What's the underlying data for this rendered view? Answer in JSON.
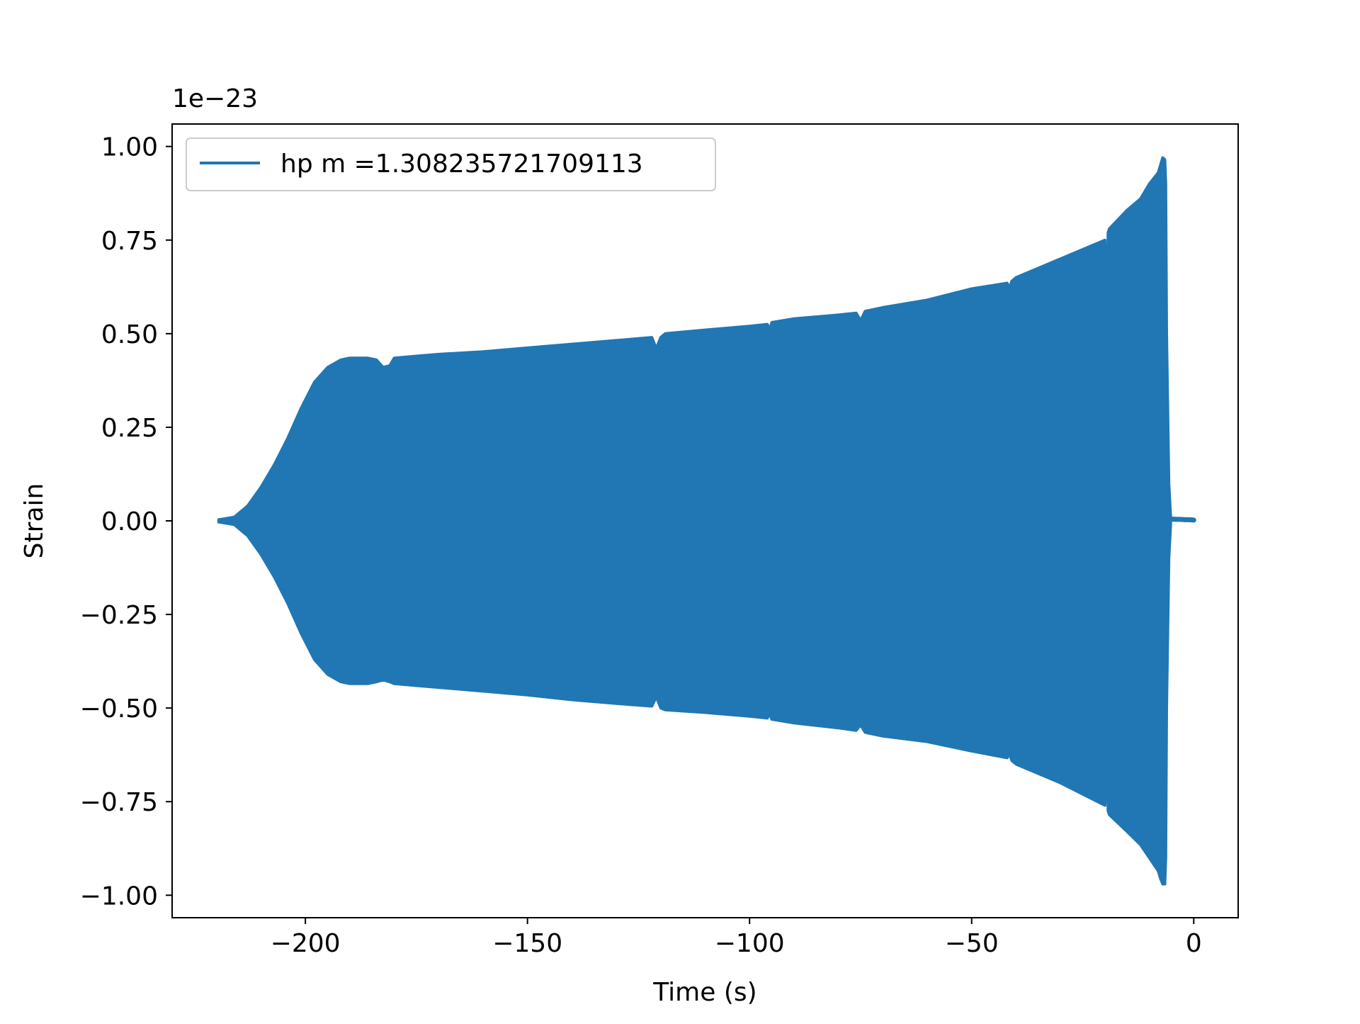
{
  "chart_data": {
    "type": "line",
    "title": "",
    "xlabel": "Time (s)",
    "ylabel": "Strain",
    "y_offset_label": "1e−23",
    "y_scale_factor": 1e-23,
    "xlim": [
      -230,
      10
    ],
    "ylim": [
      -1.06,
      1.06
    ],
    "x_ticks": [
      -200,
      -150,
      -100,
      -50,
      0
    ],
    "x_tick_labels": [
      "−200",
      "−150",
      "−100",
      "−50",
      "0"
    ],
    "y_ticks": [
      1.0,
      0.75,
      0.5,
      0.25,
      0.0,
      -0.25,
      -0.5,
      -0.75,
      -1.0
    ],
    "y_tick_labels": [
      "1.00",
      "0.75",
      "0.50",
      "0.25",
      "0.00",
      "−0.25",
      "−0.50",
      "−0.75",
      "−1.00"
    ],
    "grid": false,
    "legend_position": "upper-left",
    "series": [
      {
        "name": "hp m =1.308235721709113",
        "color": "#2077b4",
        "style": "dense-oscillation-envelope",
        "envelope_upper": {
          "x": [
            -219.5,
            -216,
            -213,
            -210,
            -207,
            -204,
            -201,
            -198,
            -195,
            -192,
            -190,
            -186,
            -184,
            -182.5,
            -181,
            -180,
            -175,
            -170,
            -160,
            -150,
            -140,
            -130,
            -122,
            -121,
            -120,
            -119,
            -110,
            -100,
            -96,
            -95.5,
            -95,
            -90,
            -80,
            -76,
            -75,
            -74,
            -70,
            -60,
            -50,
            -42,
            -41.5,
            -41,
            -40,
            -30,
            -20,
            -19.5,
            -19.3,
            -19,
            -15,
            -12,
            -10,
            -8,
            -7.5,
            -7,
            -6.5,
            -6.3,
            -6.2,
            -6.1,
            -5.6,
            -5.2
          ],
          "y": [
            0.003,
            0.01,
            0.04,
            0.09,
            0.15,
            0.22,
            0.3,
            0.37,
            0.41,
            0.43,
            0.435,
            0.435,
            0.43,
            0.41,
            0.415,
            0.435,
            0.44,
            0.445,
            0.452,
            0.462,
            0.472,
            0.482,
            0.49,
            0.46,
            0.49,
            0.5,
            0.51,
            0.52,
            0.525,
            0.51,
            0.53,
            0.54,
            0.55,
            0.555,
            0.535,
            0.56,
            0.57,
            0.59,
            0.62,
            0.635,
            0.62,
            0.64,
            0.65,
            0.7,
            0.75,
            0.55,
            0.77,
            0.78,
            0.83,
            0.86,
            0.9,
            0.93,
            0.95,
            0.97,
            0.965,
            0.9,
            0.7,
            0.5,
            0.1,
            0.01
          ]
        },
        "envelope_lower": {
          "x": [
            -219.5,
            -216,
            -213,
            -210,
            -207,
            -204,
            -201,
            -198,
            -195,
            -192,
            -190,
            -186,
            -184,
            -182.5,
            -181,
            -180,
            -175,
            -170,
            -160,
            -150,
            -140,
            -130,
            -122,
            -121,
            -120,
            -119,
            -110,
            -100,
            -96,
            -95.5,
            -95,
            -90,
            -80,
            -76,
            -75,
            -74,
            -70,
            -60,
            -50,
            -42,
            -41.5,
            -41,
            -40,
            -30,
            -20,
            -19.5,
            -19.3,
            -19,
            -15,
            -12,
            -10,
            -8,
            -7.5,
            -7,
            -6.5,
            -6.3,
            -6.2,
            -6.1,
            -5.6,
            -5.2
          ],
          "y": [
            -0.003,
            -0.01,
            -0.04,
            -0.09,
            -0.15,
            -0.22,
            -0.3,
            -0.37,
            -0.41,
            -0.43,
            -0.435,
            -0.435,
            -0.43,
            -0.425,
            -0.43,
            -0.435,
            -0.44,
            -0.445,
            -0.455,
            -0.465,
            -0.478,
            -0.488,
            -0.495,
            -0.47,
            -0.5,
            -0.505,
            -0.512,
            -0.522,
            -0.527,
            -0.515,
            -0.53,
            -0.54,
            -0.553,
            -0.56,
            -0.545,
            -0.565,
            -0.575,
            -0.59,
            -0.615,
            -0.633,
            -0.62,
            -0.64,
            -0.65,
            -0.7,
            -0.76,
            -0.6,
            -0.775,
            -0.785,
            -0.83,
            -0.865,
            -0.9,
            -0.935,
            -0.955,
            -0.97,
            -0.97,
            -0.9,
            -0.7,
            -0.5,
            -0.1,
            -0.01
          ]
        },
        "tail": {
          "x": [
            -5.2,
            -4,
            -3,
            -2,
            -1,
            0
          ],
          "y": [
            0.005,
            0.004,
            0.004,
            0.003,
            0.003,
            0.002
          ]
        }
      }
    ]
  }
}
